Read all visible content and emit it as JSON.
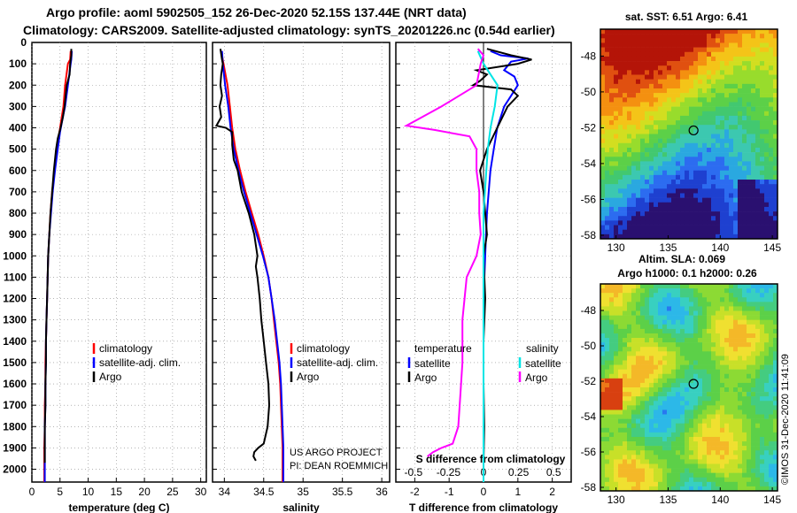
{
  "header": {
    "line1": "Argo profile: aoml 5902505_152 26-Dec-2020 52.15S 137.44E (NRT data)",
    "line2": "Climatology: CARS2009. Satellite-adjusted climatology: synTS_20201226.nc (0.54d earlier)"
  },
  "colors": {
    "climatology": "#ff0000",
    "satellite": "#0000ff",
    "argo": "#000000",
    "sal_satellite": "#00e5e5",
    "sal_argo": "#ff00ff"
  },
  "chart_data": [
    {
      "type": "line",
      "id": "temperature",
      "xlabel": "temperature (deg C)",
      "ylabel": "",
      "xlim": [
        0,
        31
      ],
      "ylim": [
        2060,
        0
      ],
      "xticks": [
        "0",
        "5",
        "10",
        "15",
        "20",
        "25",
        "30"
      ],
      "yticks": [
        "0",
        "100",
        "200",
        "300",
        "400",
        "500",
        "600",
        "700",
        "800",
        "900",
        "1000",
        "1100",
        "1200",
        "1300",
        "1400",
        "1500",
        "1600",
        "1700",
        "1800",
        "1900",
        "2000"
      ],
      "legend": [
        "climatology",
        "satellite-adj. clim.",
        "Argo"
      ],
      "series": [
        {
          "name": "climatology",
          "points": [
            [
              6.9,
              40
            ],
            [
              6.8,
              80
            ],
            [
              6.4,
              100
            ],
            [
              5.9,
              200
            ],
            [
              5.6,
              300
            ],
            [
              5.3,
              350
            ],
            [
              4.9,
              420
            ],
            [
              4.5,
              500
            ],
            [
              4.0,
              600
            ],
            [
              3.6,
              700
            ],
            [
              3.3,
              800
            ],
            [
              3.1,
              900
            ],
            [
              2.9,
              1000
            ],
            [
              2.8,
              1100
            ],
            [
              2.7,
              1200
            ],
            [
              2.6,
              1300
            ],
            [
              2.5,
              1400
            ],
            [
              2.4,
              1500
            ],
            [
              2.4,
              1600
            ],
            [
              2.3,
              1700
            ],
            [
              2.3,
              1800
            ],
            [
              2.2,
              1900
            ],
            [
              2.2,
              2000
            ],
            [
              2.2,
              2060
            ]
          ]
        },
        {
          "name": "satellite-adj. clim.",
          "points": [
            [
              7.1,
              40
            ],
            [
              7.0,
              80
            ],
            [
              6.9,
              100
            ],
            [
              6.4,
              200
            ],
            [
              5.9,
              300
            ],
            [
              5.5,
              350
            ],
            [
              5.0,
              420
            ],
            [
              4.6,
              500
            ],
            [
              4.1,
              600
            ],
            [
              3.7,
              700
            ],
            [
              3.4,
              800
            ],
            [
              3.1,
              900
            ],
            [
              2.9,
              1000
            ],
            [
              2.8,
              1100
            ],
            [
              2.7,
              1200
            ],
            [
              2.6,
              1300
            ],
            [
              2.5,
              1400
            ],
            [
              2.5,
              1500
            ],
            [
              2.4,
              1600
            ],
            [
              2.4,
              1700
            ],
            [
              2.3,
              1800
            ],
            [
              2.3,
              1900
            ],
            [
              2.3,
              2000
            ],
            [
              2.3,
              2060
            ]
          ]
        },
        {
          "name": "Argo",
          "points": [
            [
              7.0,
              30
            ],
            [
              7.0,
              60
            ],
            [
              6.8,
              100
            ],
            [
              6.7,
              150
            ],
            [
              6.2,
              200
            ],
            [
              6.0,
              250
            ],
            [
              5.8,
              300
            ],
            [
              5.5,
              350
            ],
            [
              5.1,
              400
            ],
            [
              4.6,
              450
            ],
            [
              4.3,
              500
            ],
            [
              3.9,
              600
            ],
            [
              3.6,
              700
            ],
            [
              3.3,
              800
            ],
            [
              3.1,
              900
            ],
            [
              2.9,
              1000
            ],
            [
              2.8,
              1100
            ],
            [
              2.7,
              1200
            ],
            [
              2.6,
              1300
            ],
            [
              2.5,
              1400
            ],
            [
              2.5,
              1500
            ],
            [
              2.4,
              1600
            ],
            [
              2.4,
              1700
            ],
            [
              2.3,
              1800
            ],
            [
              2.3,
              1900
            ],
            [
              2.3,
              1970
            ]
          ]
        }
      ]
    },
    {
      "type": "line",
      "id": "salinity",
      "xlabel": "salinity",
      "ylabel": "",
      "xlim": [
        33.85,
        36.1
      ],
      "ylim": [
        2060,
        0
      ],
      "xticks": [
        "34",
        "34.5",
        "35",
        "35.5",
        "36"
      ],
      "legend": [
        "climatology",
        "satellite-adj. clim.",
        "Argo"
      ],
      "annotations": [
        "US ARGO PROJECT",
        "PI: DEAN ROEMMICH"
      ],
      "series": [
        {
          "name": "climatology",
          "points": [
            [
              33.96,
              40
            ],
            [
              33.99,
              100
            ],
            [
              34.04,
              200
            ],
            [
              34.07,
              300
            ],
            [
              34.1,
              400
            ],
            [
              34.14,
              500
            ],
            [
              34.2,
              600
            ],
            [
              34.27,
              700
            ],
            [
              34.35,
              800
            ],
            [
              34.43,
              900
            ],
            [
              34.5,
              1000
            ],
            [
              34.56,
              1100
            ],
            [
              34.6,
              1200
            ],
            [
              34.63,
              1300
            ],
            [
              34.66,
              1400
            ],
            [
              34.69,
              1500
            ],
            [
              34.71,
              1600
            ],
            [
              34.72,
              1700
            ],
            [
              34.73,
              1800
            ],
            [
              34.74,
              1900
            ],
            [
              34.74,
              2000
            ],
            [
              34.74,
              2060
            ]
          ]
        },
        {
          "name": "satellite-adj. clim.",
          "points": [
            [
              33.97,
              40
            ],
            [
              33.98,
              100
            ],
            [
              34.01,
              200
            ],
            [
              34.05,
              300
            ],
            [
              34.08,
              400
            ],
            [
              34.12,
              500
            ],
            [
              34.18,
              600
            ],
            [
              34.25,
              700
            ],
            [
              34.33,
              800
            ],
            [
              34.41,
              900
            ],
            [
              34.49,
              1000
            ],
            [
              34.56,
              1100
            ],
            [
              34.6,
              1200
            ],
            [
              34.64,
              1300
            ],
            [
              34.67,
              1400
            ],
            [
              34.7,
              1500
            ],
            [
              34.72,
              1600
            ],
            [
              34.73,
              1700
            ],
            [
              34.74,
              1800
            ],
            [
              34.75,
              1900
            ],
            [
              34.75,
              2000
            ],
            [
              34.75,
              2060
            ]
          ]
        },
        {
          "name": "Argo",
          "points": [
            [
              33.95,
              30
            ],
            [
              33.97,
              80
            ],
            [
              33.98,
              100
            ],
            [
              33.96,
              150
            ],
            [
              33.95,
              200
            ],
            [
              33.97,
              250
            ],
            [
              33.94,
              300
            ],
            [
              33.96,
              350
            ],
            [
              33.9,
              390
            ],
            [
              34.02,
              400
            ],
            [
              34.1,
              420
            ],
            [
              34.1,
              480
            ],
            [
              34.12,
              550
            ],
            [
              34.17,
              600
            ],
            [
              34.22,
              700
            ],
            [
              34.31,
              800
            ],
            [
              34.38,
              900
            ],
            [
              34.42,
              1000
            ],
            [
              34.4,
              1050
            ],
            [
              34.42,
              1100
            ],
            [
              34.45,
              1200
            ],
            [
              34.47,
              1300
            ],
            [
              34.5,
              1400
            ],
            [
              34.53,
              1500
            ],
            [
              34.56,
              1600
            ],
            [
              34.57,
              1700
            ],
            [
              34.55,
              1800
            ],
            [
              34.5,
              1880
            ],
            [
              34.43,
              1900
            ],
            [
              34.38,
              1920
            ],
            [
              34.37,
              1940
            ],
            [
              34.4,
              1960
            ]
          ]
        }
      ]
    },
    {
      "type": "line",
      "id": "difference",
      "xlabel": "T difference from climatology",
      "xlabel_top": "S difference from climatology",
      "ylabel": "",
      "xlim": [
        -2.55,
        2.55
      ],
      "ylim": [
        2060,
        0
      ],
      "xticks": [
        "-2",
        "-1",
        "0",
        "1",
        "2"
      ],
      "xticks_top": [
        "-0.5",
        "-0.25",
        "0",
        "0.25",
        "0.5"
      ],
      "legend_temperature_title": "temperature",
      "legend_salinity_title": "salinity",
      "legend_temperature": [
        "satellite",
        "Argo"
      ],
      "legend_salinity": [
        "satellite",
        "Argo"
      ],
      "series": [
        {
          "name": "satellite",
          "group": "temperature",
          "points": [
            [
              0.2,
              40
            ],
            [
              0.5,
              60
            ],
            [
              1.3,
              75
            ],
            [
              0.8,
              90
            ],
            [
              0.6,
              130
            ],
            [
              0.9,
              160
            ],
            [
              1.0,
              200
            ],
            [
              0.8,
              250
            ],
            [
              0.6,
              300
            ],
            [
              0.4,
              400
            ],
            [
              0.3,
              500
            ],
            [
              0.2,
              600
            ],
            [
              0.1,
              800
            ],
            [
              0.05,
              1000
            ],
            [
              0.0,
              1200
            ],
            [
              0.0,
              1500
            ],
            [
              0.0,
              2000
            ]
          ]
        },
        {
          "name": "Argo",
          "group": "temperature",
          "points": [
            [
              0.1,
              30
            ],
            [
              0.8,
              60
            ],
            [
              1.4,
              80
            ],
            [
              1.0,
              100
            ],
            [
              -0.2,
              130
            ],
            [
              0.1,
              150
            ],
            [
              -0.1,
              180
            ],
            [
              -0.3,
              200
            ],
            [
              0.8,
              220
            ],
            [
              1.0,
              250
            ],
            [
              0.7,
              300
            ],
            [
              0.4,
              400
            ],
            [
              0.1,
              500
            ],
            [
              -0.1,
              600
            ],
            [
              0.0,
              700
            ],
            [
              0.1,
              900
            ],
            [
              0.0,
              1000
            ],
            [
              0.05,
              1200
            ],
            [
              0.0,
              1400
            ],
            [
              0.0,
              1600
            ],
            [
              0.02,
              1800
            ],
            [
              0.0,
              1970
            ]
          ]
        },
        {
          "name": "satellite",
          "group": "salinity",
          "points": [
            [
              -0.04,
              40
            ],
            [
              0.0,
              100
            ],
            [
              0.1,
              200
            ],
            [
              0.08,
              300
            ],
            [
              0.05,
              400
            ],
            [
              0.03,
              500
            ],
            [
              0.0,
              800
            ],
            [
              0.0,
              1000
            ],
            [
              0.0,
              1500
            ],
            [
              0.0,
              2060
            ]
          ]
        },
        {
          "name": "Argo",
          "group": "salinity",
          "points": [
            [
              -0.04,
              30
            ],
            [
              0.0,
              60
            ],
            [
              -0.02,
              100
            ],
            [
              -0.05,
              200
            ],
            [
              -0.3,
              300
            ],
            [
              -0.55,
              390
            ],
            [
              -0.35,
              410
            ],
            [
              -0.1,
              440
            ],
            [
              -0.05,
              500
            ],
            [
              -0.05,
              600
            ],
            [
              -0.03,
              700
            ],
            [
              -0.03,
              800
            ],
            [
              -0.02,
              900
            ],
            [
              -0.05,
              1000
            ],
            [
              -0.12,
              1100
            ],
            [
              -0.15,
              1300
            ],
            [
              -0.15,
              1500
            ],
            [
              -0.17,
              1700
            ],
            [
              -0.18,
              1800
            ],
            [
              -0.22,
              1880
            ],
            [
              -0.3,
              1900
            ],
            [
              -0.36,
              1920
            ],
            [
              -0.4,
              1940
            ]
          ]
        }
      ]
    }
  ],
  "maps": {
    "sst": {
      "title": "sat. SST: 6.51 Argo: 6.41",
      "lon_ticks": [
        "130",
        "135",
        "140",
        "145"
      ],
      "lat_ticks": [
        "-48",
        "-50",
        "-52",
        "-54",
        "-56",
        "-58"
      ],
      "lon_range": [
        128.5,
        145.5
      ],
      "lat_range": [
        -58.2,
        -46.5
      ],
      "marker": {
        "lon": 137.44,
        "lat": -52.15
      }
    },
    "sla": {
      "title": "Altim. SLA: 0.069",
      "subtitle": "Argo h1000: 0.1 h2000: 0.26",
      "lon_ticks": [
        "130",
        "135",
        "140",
        "145"
      ],
      "lat_ticks": [
        "-48",
        "-50",
        "-52",
        "-54",
        "-56",
        "-58"
      ],
      "lon_range": [
        128.5,
        145.5
      ],
      "lat_range": [
        -58.2,
        -46.5
      ],
      "marker": {
        "lon": 137.44,
        "lat": -52.15
      }
    }
  },
  "credit": "©IMOS 31-Dec-2020 11:41:09"
}
